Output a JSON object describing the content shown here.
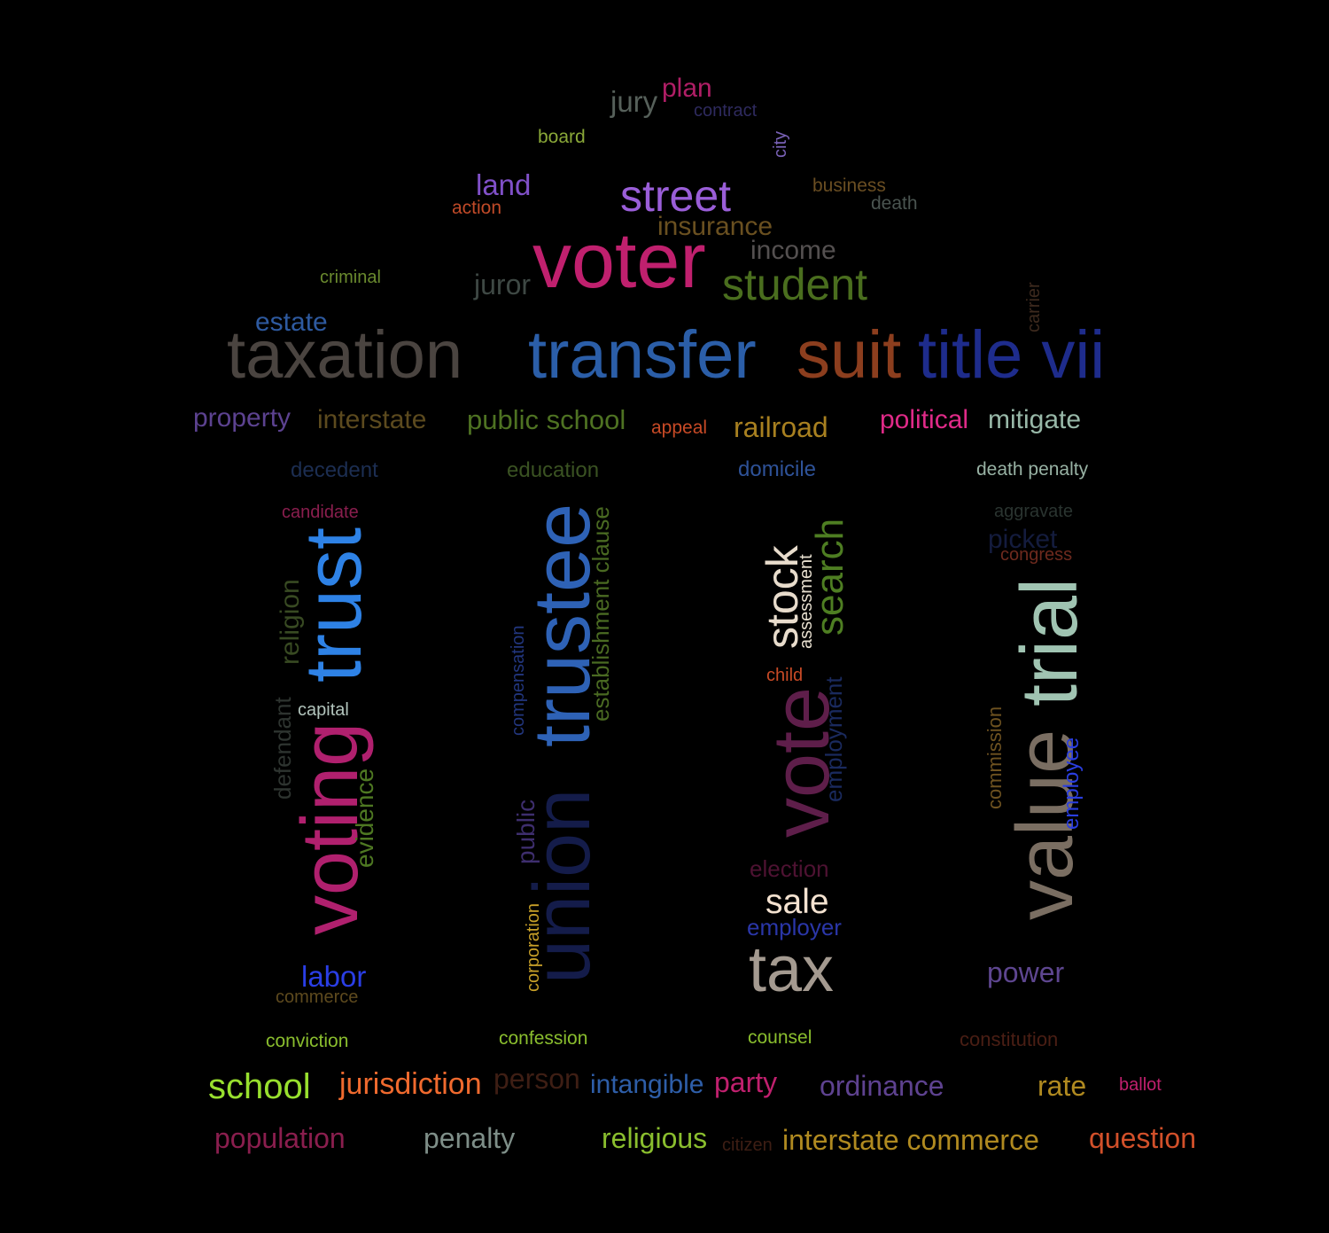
{
  "background": "#000000",
  "words": [
    {
      "text": "voter",
      "color": "#c0206e"
    },
    {
      "text": "taxation",
      "color": "#4a4440"
    },
    {
      "text": "transfer",
      "color": "#2b5ea8"
    },
    {
      "text": "suit",
      "color": "#8c3e1e"
    },
    {
      "text": "title vii",
      "color": "#1e2c8c"
    },
    {
      "text": "student",
      "color": "#4a6e1e"
    },
    {
      "text": "street",
      "color": "#9a5ed8"
    },
    {
      "text": "insurance",
      "color": "#6a5020"
    },
    {
      "text": "income",
      "color": "#545050"
    },
    {
      "text": "juror",
      "color": "#3e4844"
    },
    {
      "text": "estate",
      "color": "#2e5aa0"
    },
    {
      "text": "land",
      "color": "#8050c8"
    },
    {
      "text": "action",
      "color": "#c04a28"
    },
    {
      "text": "jury",
      "color": "#56605a"
    },
    {
      "text": "plan",
      "color": "#b01e66"
    },
    {
      "text": "contract",
      "color": "#2e2a5e"
    },
    {
      "text": "board",
      "color": "#8aa838"
    },
    {
      "text": "city",
      "color": "#7a62b8"
    },
    {
      "text": "business",
      "color": "#6a4e22"
    },
    {
      "text": "death",
      "color": "#4a5450"
    },
    {
      "text": "criminal",
      "color": "#6a8a2e"
    },
    {
      "text": "carrier",
      "color": "#3e2a1e"
    },
    {
      "text": "property",
      "color": "#5c4290"
    },
    {
      "text": "interstate",
      "color": "#5c4a1e"
    },
    {
      "text": "public school",
      "color": "#4e7222"
    },
    {
      "text": "appeal",
      "color": "#c84a26"
    },
    {
      "text": "railroad",
      "color": "#a88020"
    },
    {
      "text": "political",
      "color": "#e02a88"
    },
    {
      "text": "mitigate",
      "color": "#98b8a8"
    },
    {
      "text": "decedent",
      "color": "#1c2e52"
    },
    {
      "text": "education",
      "color": "#3a5222"
    },
    {
      "text": "domicile",
      "color": "#2e5298"
    },
    {
      "text": "death penalty",
      "color": "#98b2a4"
    },
    {
      "text": "candidate",
      "color": "#8a1e4e"
    },
    {
      "text": "aggravate",
      "color": "#2a3430"
    },
    {
      "text": "picket",
      "color": "#141c3e"
    },
    {
      "text": "congress",
      "color": "#6e2a1e"
    },
    {
      "text": "trust",
      "color": "#2e82e6"
    },
    {
      "text": "voting",
      "color": "#b0206e"
    },
    {
      "text": "religion",
      "color": "#384a22"
    },
    {
      "text": "defendant",
      "color": "#2e3430"
    },
    {
      "text": "capital",
      "color": "#b2c4bc"
    },
    {
      "text": "evidence",
      "color": "#4e7822"
    },
    {
      "text": "labor",
      "color": "#2a3ee6"
    },
    {
      "text": "commerce",
      "color": "#5e4a1e"
    },
    {
      "text": "trustee",
      "color": "#2e62b6"
    },
    {
      "text": "union",
      "color": "#141c4a"
    },
    {
      "text": "establishment clause",
      "color": "#4a6a22"
    },
    {
      "text": "compensation",
      "color": "#22367e"
    },
    {
      "text": "public",
      "color": "#3e2e6e"
    },
    {
      "text": "corporation",
      "color": "#c8a028"
    },
    {
      "text": "stock",
      "color": "#e8dccc"
    },
    {
      "text": "assessment",
      "color": "#e8e0d0"
    },
    {
      "text": "search",
      "color": "#4e7e22"
    },
    {
      "text": "child",
      "color": "#c84a26"
    },
    {
      "text": "vote",
      "color": "#5e1e4a"
    },
    {
      "text": "employment",
      "color": "#1a2a5e"
    },
    {
      "text": "election",
      "color": "#4e1232"
    },
    {
      "text": "sale",
      "color": "#f4e2d0"
    },
    {
      "text": "employer",
      "color": "#2a36a8"
    },
    {
      "text": "tax",
      "color": "#a49a90"
    },
    {
      "text": "trial",
      "color": "#a0c4b2"
    },
    {
      "text": "value",
      "color": "#7a6e62"
    },
    {
      "text": "commission",
      "color": "#6e5220"
    },
    {
      "text": "employee",
      "color": "#2a3ee0"
    },
    {
      "text": "power",
      "color": "#5e4690"
    },
    {
      "text": "conviction",
      "color": "#8abe2e"
    },
    {
      "text": "confession",
      "color": "#8abe2e"
    },
    {
      "text": "counsel",
      "color": "#8abe2e"
    },
    {
      "text": "constitution",
      "color": "#4a1e14"
    },
    {
      "text": "school",
      "color": "#98e02e"
    },
    {
      "text": "jurisdiction",
      "color": "#f06a2e"
    },
    {
      "text": "person",
      "color": "#3e1e14"
    },
    {
      "text": "intangible",
      "color": "#2e5ea8"
    },
    {
      "text": "party",
      "color": "#c0206e"
    },
    {
      "text": "ordinance",
      "color": "#5e4290"
    },
    {
      "text": "rate",
      "color": "#b08a20"
    },
    {
      "text": "ballot",
      "color": "#c0206e"
    },
    {
      "text": "population",
      "color": "#8a1e4e"
    },
    {
      "text": "penalty",
      "color": "#7e8e88"
    },
    {
      "text": "religious",
      "color": "#8abe2e"
    },
    {
      "text": "citizen",
      "color": "#3e1e14"
    },
    {
      "text": "interstate commerce",
      "color": "#b08a20"
    },
    {
      "text": "question",
      "color": "#d2502a"
    }
  ]
}
